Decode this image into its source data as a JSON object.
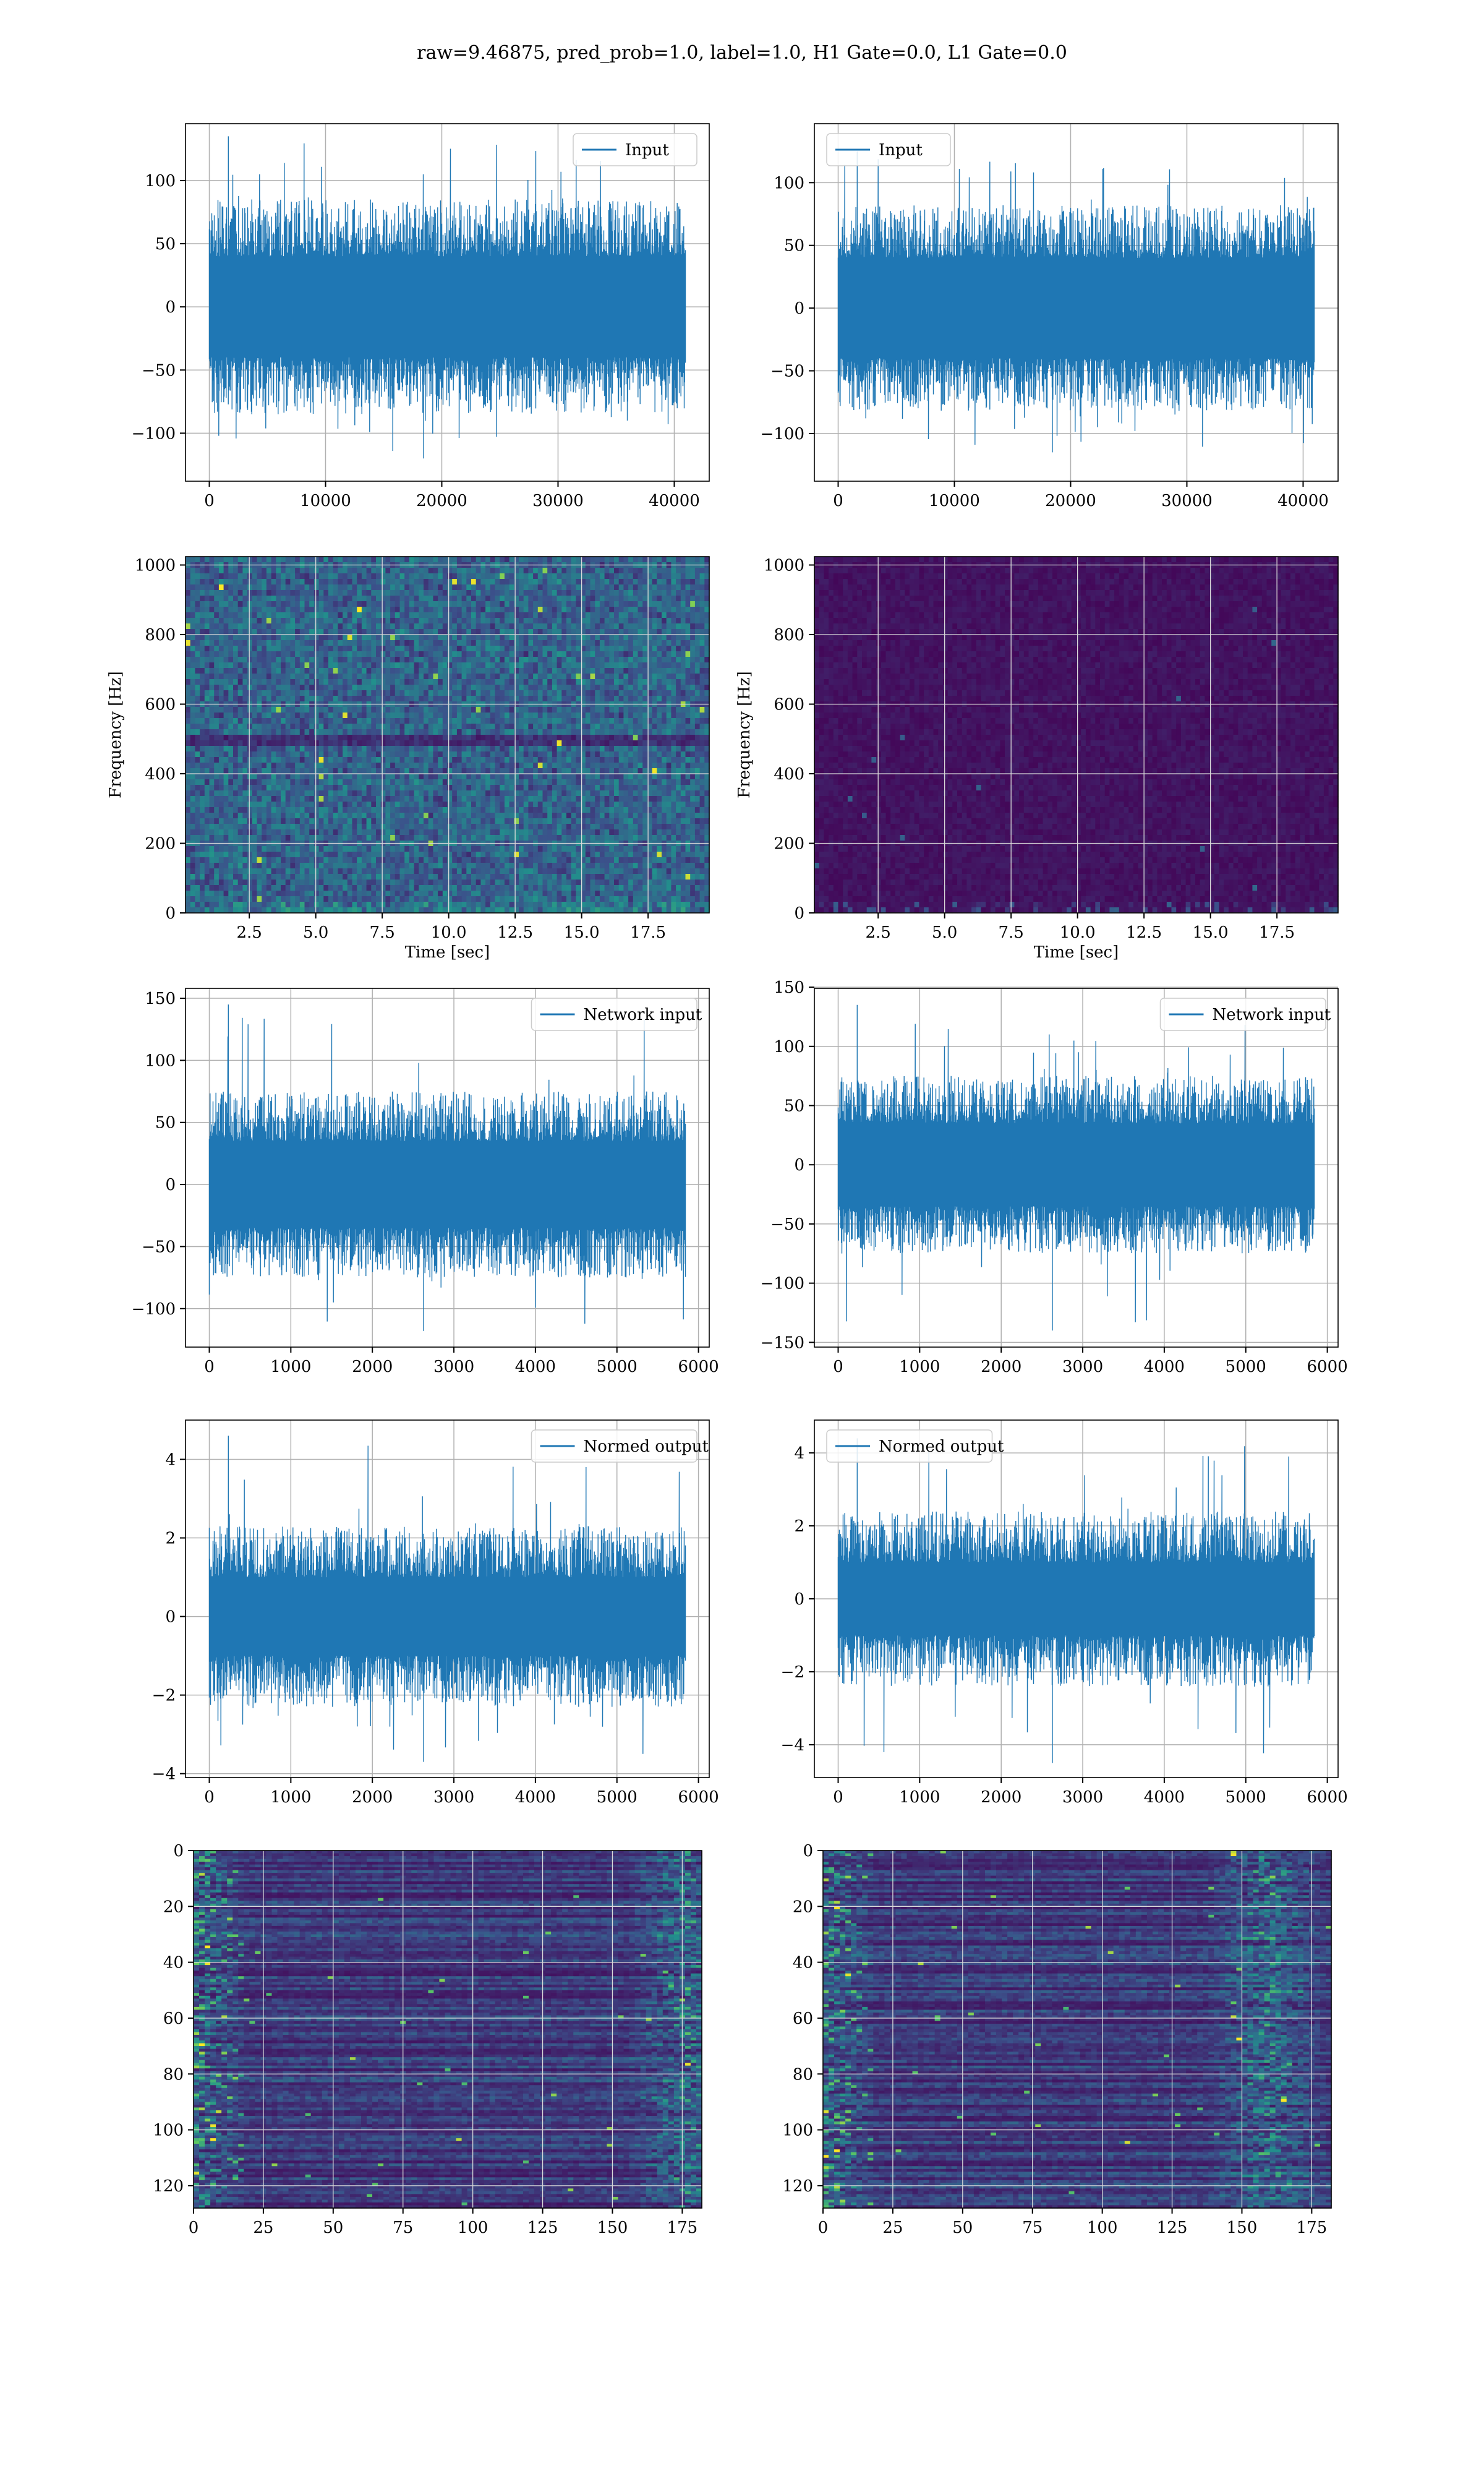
{
  "figure": {
    "title": "raw=9.46875, pred_prob=1.0, label=1.0, H1 Gate=0.0, L1 Gate=0.0"
  },
  "colors": {
    "line": "#1f77b4",
    "grid": "#b0b0b0",
    "viridis_low": "#440154",
    "viridis_high": "#fde725"
  },
  "chart_data": [
    {
      "type": "line",
      "row": 0,
      "col": 0,
      "legend": "Input",
      "legend_loc": "top-right",
      "x_range": [
        0,
        40960
      ],
      "y_range": [
        -120,
        135
      ],
      "xlim": [
        -2048,
        43008
      ],
      "ylim": [
        -138,
        145
      ],
      "xticks": [
        0,
        10000,
        20000,
        30000,
        40000
      ],
      "yticks": [
        -100,
        -50,
        0,
        50,
        100
      ],
      "envelope": {
        "inner": 40,
        "outer": 85
      },
      "grid": true
    },
    {
      "type": "line",
      "row": 0,
      "col": 1,
      "legend": "Input",
      "legend_loc": "top-left",
      "x_range": [
        0,
        40960
      ],
      "y_range": [
        -115,
        125
      ],
      "xlim": [
        -2048,
        43008
      ],
      "ylim": [
        -138,
        147
      ],
      "xticks": [
        0,
        10000,
        20000,
        30000,
        40000
      ],
      "yticks": [
        -100,
        -50,
        0,
        50,
        100
      ],
      "envelope": {
        "inner": 40,
        "outer": 82
      },
      "grid": true
    },
    {
      "type": "heatmap",
      "row": 1,
      "col": 0,
      "xlabel": "Time [sec]",
      "ylabel": "Frequency [Hz]",
      "xlim": [
        0.1,
        19.8
      ],
      "ylim": [
        0,
        1024
      ],
      "xticks": [
        2.5,
        5.0,
        7.5,
        10.0,
        12.5,
        15.0,
        17.5
      ],
      "xtick_labels": [
        "2.5",
        "5.0",
        "7.5",
        "10.0",
        "12.5",
        "15.0",
        "17.5"
      ],
      "yticks": [
        0,
        200,
        400,
        600,
        800,
        1000
      ],
      "intensity": "high",
      "band_hz": 500,
      "grid": true
    },
    {
      "type": "heatmap",
      "row": 1,
      "col": 1,
      "xlabel": "Time [sec]",
      "ylabel": "Frequency [Hz]",
      "xlim": [
        0.1,
        19.8
      ],
      "ylim": [
        0,
        1024
      ],
      "xticks": [
        2.5,
        5.0,
        7.5,
        10.0,
        12.5,
        15.0,
        17.5
      ],
      "xtick_labels": [
        "2.5",
        "5.0",
        "7.5",
        "10.0",
        "12.5",
        "15.0",
        "17.5"
      ],
      "yticks": [
        0,
        200,
        400,
        600,
        800,
        1000
      ],
      "intensity": "low",
      "grid": true
    },
    {
      "type": "line",
      "row": 2,
      "col": 0,
      "legend": "Network input",
      "legend_loc": "top-right",
      "x_range": [
        0,
        5840
      ],
      "y_range": [
        -118,
        145
      ],
      "xlim": [
        -292,
        6132
      ],
      "ylim": [
        -131,
        158
      ],
      "xticks": [
        0,
        1000,
        2000,
        3000,
        4000,
        5000,
        6000
      ],
      "yticks": [
        -100,
        -50,
        0,
        50,
        100,
        150
      ],
      "envelope": {
        "inner": 35,
        "outer": 75
      },
      "grid": true
    },
    {
      "type": "line",
      "row": 2,
      "col": 1,
      "legend": "Network input",
      "legend_loc": "top-right",
      "x_range": [
        0,
        5840
      ],
      "y_range": [
        -140,
        135
      ],
      "xlim": [
        -292,
        6132
      ],
      "ylim": [
        -154,
        149
      ],
      "xticks": [
        0,
        1000,
        2000,
        3000,
        4000,
        5000,
        6000
      ],
      "yticks": [
        -150,
        -100,
        -50,
        0,
        50,
        100,
        150
      ],
      "envelope": {
        "inner": 35,
        "outer": 75
      },
      "grid": true
    },
    {
      "type": "line",
      "row": 3,
      "col": 0,
      "legend": "Normed output",
      "legend_loc": "top-right",
      "x_range": [
        0,
        5840
      ],
      "y_range": [
        -3.7,
        4.6
      ],
      "xlim": [
        -292,
        6132
      ],
      "ylim": [
        -4.1,
        5.0
      ],
      "xticks": [
        0,
        1000,
        2000,
        3000,
        4000,
        5000,
        6000
      ],
      "yticks": [
        -4,
        -2,
        0,
        2,
        4
      ],
      "envelope": {
        "inner": 1.0,
        "outer": 2.3
      },
      "grid": true
    },
    {
      "type": "line",
      "row": 3,
      "col": 1,
      "legend": "Normed output",
      "legend_loc": "top-left",
      "x_range": [
        0,
        5840
      ],
      "y_range": [
        -4.5,
        4.4
      ],
      "xlim": [
        -292,
        6132
      ],
      "ylim": [
        -4.9,
        4.9
      ],
      "xticks": [
        0,
        1000,
        2000,
        3000,
        4000,
        5000,
        6000
      ],
      "yticks": [
        -4,
        -2,
        0,
        2,
        4
      ],
      "envelope": {
        "inner": 1.0,
        "outer": 2.4
      },
      "grid": true
    },
    {
      "type": "heatmap",
      "row": 4,
      "col": 0,
      "xlim": [
        0,
        182
      ],
      "ylim": [
        128,
        0
      ],
      "xticks": [
        0,
        25,
        50,
        75,
        100,
        125,
        150,
        175
      ],
      "xtick_labels": [
        "0",
        "25",
        "50",
        "75",
        "100",
        "125",
        "150",
        "175"
      ],
      "yticks": [
        0,
        20,
        40,
        60,
        80,
        100,
        120
      ],
      "layout": "feature-map",
      "hot_col": 176,
      "grid": true
    },
    {
      "type": "heatmap",
      "row": 4,
      "col": 1,
      "xlim": [
        0,
        182
      ],
      "ylim": [
        128,
        0
      ],
      "xticks": [
        0,
        25,
        50,
        75,
        100,
        125,
        150,
        175
      ],
      "xtick_labels": [
        "0",
        "25",
        "50",
        "75",
        "100",
        "125",
        "150",
        "175"
      ],
      "yticks": [
        0,
        20,
        40,
        60,
        80,
        100,
        120
      ],
      "layout": "feature-map",
      "hot_col": 158,
      "grid": true
    }
  ]
}
